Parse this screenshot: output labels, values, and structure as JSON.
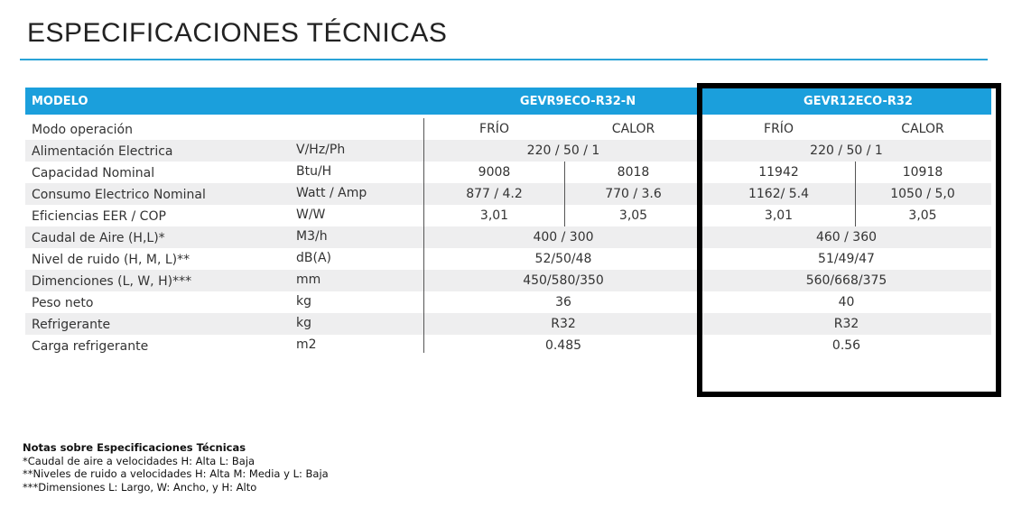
{
  "title": "ESPECIFICACIONES TÉCNICAS",
  "table": {
    "header": {
      "label": "MODELO",
      "models": [
        "GEVR9ECO-R32-N",
        "GEVR12ECO-R32"
      ]
    },
    "rows": [
      {
        "label": "Modo operación",
        "models": [
          [
            "FRÍO",
            "CALOR"
          ],
          [
            "FRÍO",
            "CALOR"
          ]
        ]
      },
      {
        "label": "Alimentación Electrica",
        "unit": "V/Hz/Ph",
        "models": [
          [
            "220 / 50 / 1"
          ],
          [
            "220 / 50 / 1"
          ]
        ]
      },
      {
        "label": "Capacidad Nominal",
        "unit": "Btu/H",
        "models": [
          [
            "9008",
            "8018"
          ],
          [
            "11942",
            "10918"
          ]
        ]
      },
      {
        "label": "Consumo Electrico Nominal",
        "unit": "Watt / Amp",
        "models": [
          [
            "877 / 4.2",
            "770 / 3.6"
          ],
          [
            "1162/ 5.4",
            "1050 / 5,0"
          ]
        ]
      },
      {
        "label": "Eficiencias EER / COP",
        "unit": "W/W",
        "models": [
          [
            "3,01",
            "3,05"
          ],
          [
            "3,01",
            "3,05"
          ]
        ]
      },
      {
        "label": "Caudal de Aire (H,L)*",
        "unit": "M3/h",
        "models": [
          [
            "400 / 300"
          ],
          [
            "460 / 360"
          ]
        ]
      },
      {
        "label": "Nivel de ruido (H, M, L)**",
        "unit": "dB(A)",
        "models": [
          [
            "52/50/48"
          ],
          [
            "51/49/47"
          ]
        ]
      },
      {
        "label": "Dimenciones (L, W, H)***",
        "unit": "mm",
        "models": [
          [
            "450/580/350"
          ],
          [
            "560/668/375"
          ]
        ]
      },
      {
        "label": "Peso neto",
        "unit": "kg",
        "models": [
          [
            "36"
          ],
          [
            "40"
          ]
        ]
      },
      {
        "label": "Refrigerante",
        "unit": "kg",
        "models": [
          [
            "R32"
          ],
          [
            "R32"
          ]
        ]
      },
      {
        "label": "Carga refrigerante",
        "unit": "m2",
        "models": [
          [
            "0.485"
          ],
          [
            "0.56"
          ]
        ]
      }
    ]
  },
  "notes": {
    "title": "Notas sobre Especificaciones Técnicas",
    "lines": [
      "*Caudal de aire a velocidades H: Alta L: Baja",
      "**Niveles de ruido a velocidades H: Alta M: Media y L: Baja",
      "***Dimensiones L: Largo, W: Ancho, y H: Alto"
    ]
  }
}
